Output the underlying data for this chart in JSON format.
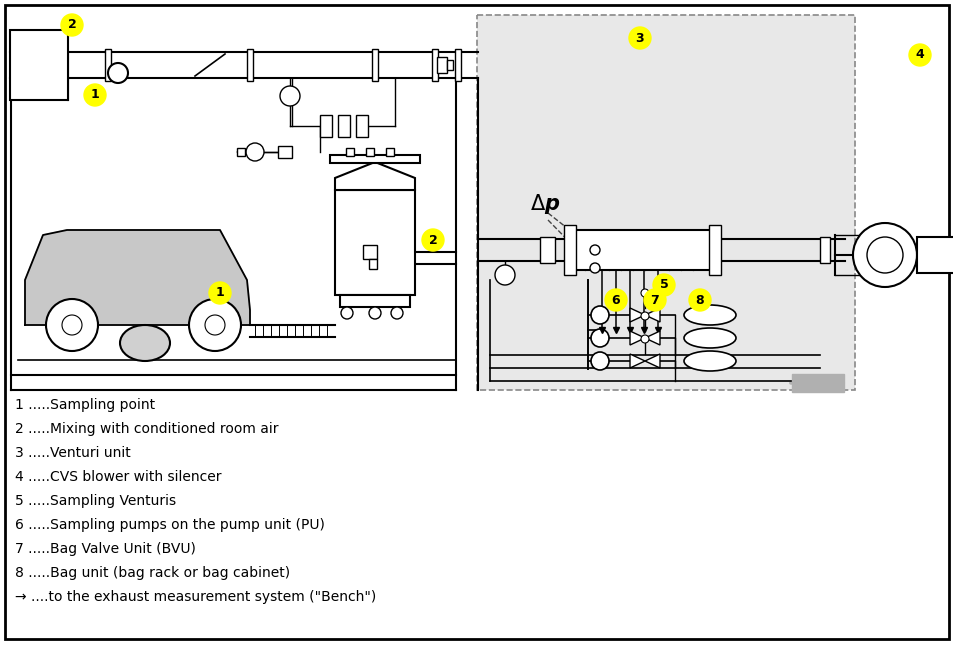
{
  "bg_color": "#ffffff",
  "label_bg": "#ffff00",
  "dash_fill": "#e8e8e8",
  "car_color": "#c8c8c8",
  "gray_arrow": "#b0b0b0",
  "legend_items": [
    "1 .....Sampling point",
    "2 .....Mixing with conditioned room air",
    "3 .....Venturi unit",
    "4 .....CVS blower with silencer",
    "5 .....Sampling Venturis",
    "6 .....Sampling pumps on the pump unit (PU)",
    "7 .....Bag Valve Unit (BVU)",
    "8 .....Bag unit (bag rack or bag cabinet)",
    "→ ....to the exhaust measurement system (\"Bench\")"
  ],
  "legend_fontsize": 10,
  "figsize": [
    9.54,
    6.45
  ],
  "dpi": 100
}
